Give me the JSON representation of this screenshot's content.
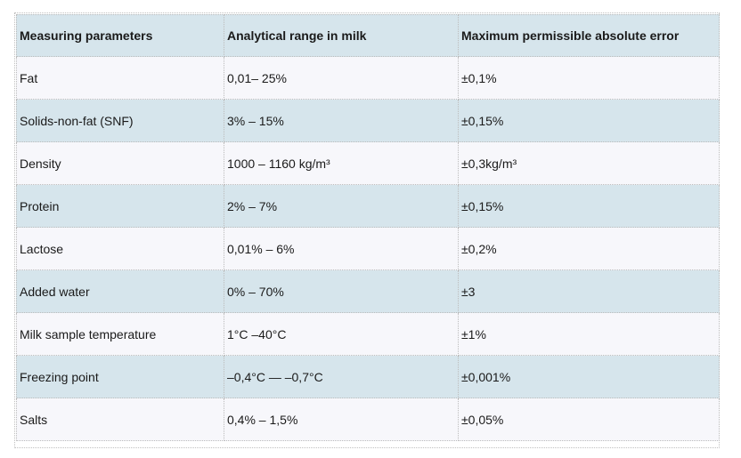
{
  "table": {
    "headers": [
      "Measuring parameters",
      "Analytical range in milk",
      "Maximum permissible absolute error"
    ],
    "rows": [
      [
        "Fat",
        "0,01– 25%",
        "±0,1%"
      ],
      [
        "Solids-non-fat (SNF)",
        "3% – 15%",
        "±0,15%"
      ],
      [
        "Density",
        "1000 – 1160 kg/m³",
        "±0,3kg/m³"
      ],
      [
        "Protein",
        "2% – 7%",
        "±0,15%"
      ],
      [
        "Lactose",
        "0,01% – 6%",
        "±0,2%"
      ],
      [
        "Added water",
        "0% – 70%",
        "±3"
      ],
      [
        "Milk sample temperature",
        "1°C –40°C",
        "±1%"
      ],
      [
        "Freezing point",
        "–0,4°C — –0,7°C",
        "±0,001%"
      ],
      [
        "Salts",
        "0,4% – 1,5%",
        "±0,05%"
      ]
    ]
  },
  "colors": {
    "header_bg": "#d6e5ec",
    "row_light": "#f7f7fb",
    "row_blue": "#d6e5ec",
    "grid": "#bcbcbc"
  }
}
